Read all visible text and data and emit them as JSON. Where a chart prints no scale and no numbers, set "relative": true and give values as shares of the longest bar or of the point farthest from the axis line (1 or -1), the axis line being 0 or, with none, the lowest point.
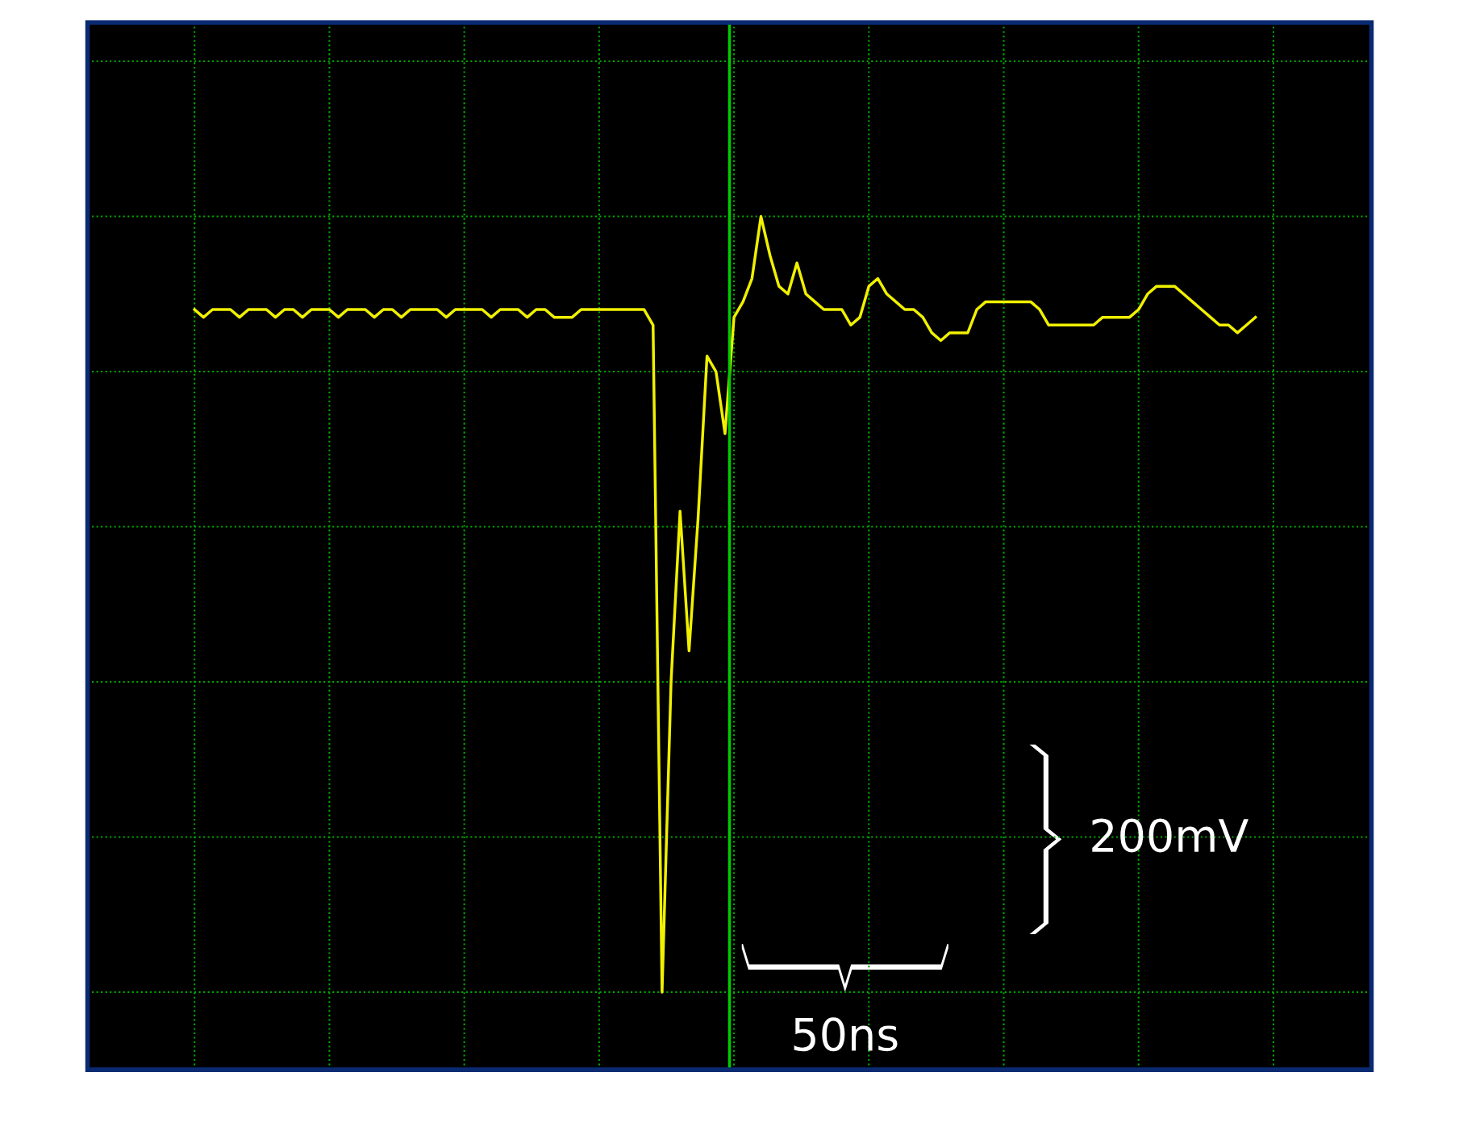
{
  "chart_data": {
    "type": "line",
    "relative": true,
    "color": "#f0f000",
    "grid": true,
    "marker": "none",
    "line_style": "solid",
    "categories": [
      null,
      null,
      null,
      null,
      null,
      null,
      null,
      null,
      null,
      null,
      null,
      null,
      null,
      null,
      null,
      null,
      null,
      null,
      null,
      null,
      null,
      null,
      null,
      null,
      null,
      null,
      null,
      null,
      null,
      null,
      null,
      null,
      null,
      null,
      null,
      null,
      null,
      null,
      null,
      null,
      null,
      null,
      null,
      null,
      null,
      null,
      null,
      null,
      null,
      null,
      null,
      null,
      null,
      null,
      null,
      null,
      null,
      null,
      null,
      null,
      null,
      null,
      null,
      null,
      null,
      null,
      null,
      null,
      null,
      null,
      null,
      null,
      null,
      null,
      null,
      null,
      null,
      null,
      null,
      null,
      null,
      null,
      null,
      null,
      null,
      null,
      null,
      null,
      null,
      null,
      null,
      null,
      null,
      null,
      null,
      null,
      null,
      null,
      null,
      null,
      null,
      null,
      null,
      null,
      null,
      null,
      null,
      null,
      null,
      null,
      null,
      null,
      null,
      null,
      null,
      null,
      null,
      null,
      null
    ],
    "values": [
      0.88,
      0.87,
      0.88,
      0.88,
      0.88,
      0.87,
      0.88,
      0.88,
      0.88,
      0.87,
      0.88,
      0.88,
      0.87,
      0.88,
      0.88,
      0.88,
      0.87,
      0.88,
      0.88,
      0.88,
      0.87,
      0.88,
      0.88,
      0.87,
      0.88,
      0.88,
      0.88,
      0.88,
      0.87,
      0.88,
      0.88,
      0.88,
      0.88,
      0.87,
      0.88,
      0.88,
      0.88,
      0.87,
      0.88,
      0.88,
      0.87,
      0.87,
      0.87,
      0.88,
      0.88,
      0.88,
      0.88,
      0.88,
      0.88,
      0.88,
      0.88,
      0.86,
      0,
      0.4,
      0.62,
      0.44,
      0.61,
      0.82,
      0.8,
      0.72,
      0.87,
      0.89,
      0.92,
      1,
      0.95,
      0.91,
      0.9,
      0.94,
      0.9,
      0.89,
      0.88,
      0.88,
      0.88,
      0.86,
      0.87,
      0.91,
      0.92,
      0.9,
      0.89,
      0.88,
      0.88,
      0.87,
      0.85,
      0.84,
      0.85,
      0.85,
      0.85,
      0.88,
      0.89,
      0.89,
      0.89,
      0.89,
      0.89,
      0.89,
      0.88,
      0.86,
      0.86,
      0.86,
      0.86,
      0.86,
      0.86,
      0.87,
      0.87,
      0.87,
      0.87,
      0.88,
      0.9,
      0.91,
      0.91,
      0.91,
      0.9,
      0.89,
      0.88,
      0.87,
      0.86,
      0.86,
      0.85,
      0.86,
      0.87
    ],
    "annotations": [
      "200mV",
      "50ns"
    ]
  }
}
